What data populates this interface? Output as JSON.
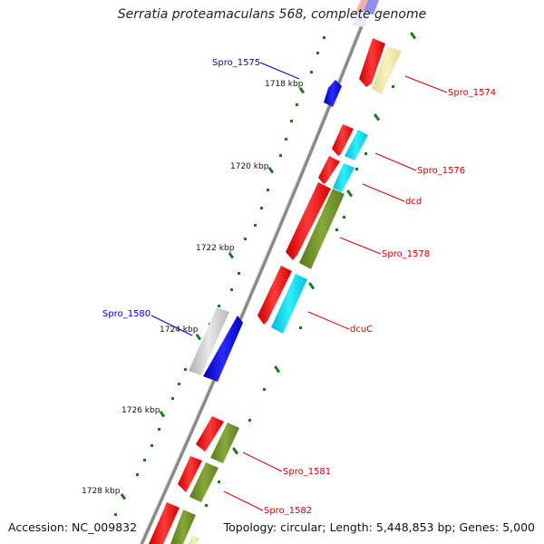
{
  "title": "Serratia proteamaculans 568, complete genome",
  "footer": {
    "accession": "Accession: NC_009832",
    "topology": "Topology: circular; Length: 5,448,853 bp; Genes: 5,000"
  },
  "kbp_labels": [
    "1718 kbp",
    "1720 kbp",
    "1722 kbp",
    "1724 kbp",
    "1726 kbp",
    "1728 kbp"
  ],
  "gene_labels_left": [
    "Spro_1575",
    "Spro_1580"
  ],
  "gene_labels_right": [
    "Spro_1574",
    "Spro_1576",
    "dcd",
    "Spro_1578",
    "dcuC",
    "Spro_1581",
    "Spro_1582"
  ],
  "colors": {
    "backbone": "#8a8a8a",
    "red": "#ff1a1a",
    "blue": "#1010e0",
    "cyan": "#10d8f0",
    "olive": "#6b8e23",
    "khaki": "#eee8aa",
    "grey": "#c8c8c8",
    "tick_green": "#1a7a1a",
    "label_red": "#cc0000",
    "label_blue": "#0000cc"
  }
}
